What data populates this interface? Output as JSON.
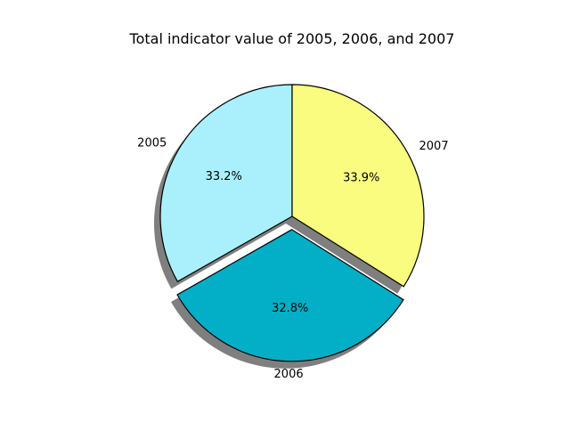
{
  "chart_data": {
    "type": "pie",
    "title": "Total indicator value of 2005, 2006, and 2007",
    "slices": [
      {
        "label": "2005",
        "value": 33.2,
        "pct_label": "33.2%",
        "color": "#aaf0fc",
        "explode": 0
      },
      {
        "label": "2006",
        "value": 32.8,
        "pct_label": "32.8%",
        "color": "#03afc7",
        "explode": 0.1
      },
      {
        "label": "2007",
        "value": 33.9,
        "pct_label": "33.9%",
        "color": "#f9fc7f",
        "explode": 0
      }
    ],
    "start_angle": 90,
    "direction": "counterclockwise",
    "shadow": true,
    "edge_color": "#000000"
  }
}
